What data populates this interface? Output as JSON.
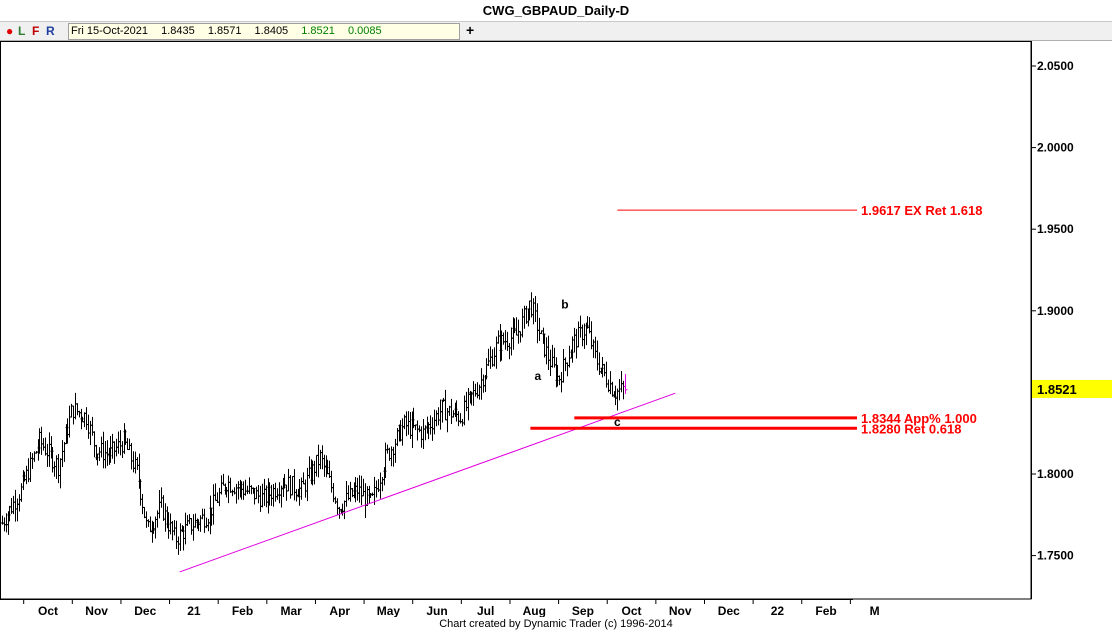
{
  "window": {
    "title": "CWG_GBPAUD_Daily-D"
  },
  "toolbar": {
    "buttons": [
      {
        "label": "L",
        "color": "#2e7d32"
      },
      {
        "label": "F",
        "color": "#c00000"
      },
      {
        "label": "R",
        "color": "#1f3fa0"
      }
    ],
    "dot_color": "#e00000",
    "quote": {
      "date": "Fri 15-Oct-2021",
      "open": "1.8435",
      "high": "1.8571",
      "low": "1.8405",
      "close": "1.8521",
      "change": "0.0085"
    },
    "add_label": "+"
  },
  "footer": {
    "text": "Chart created by Dynamic Trader  (c)  1996-2014"
  },
  "chart_data": {
    "type": "ohlc",
    "title": "CWG_GBPAUD_Daily-D",
    "ylim": [
      1.725,
      2.06
    ],
    "y_ticks": [
      "2.0500",
      "2.0000",
      "1.9500",
      "1.9000",
      "1.8000",
      "1.7500"
    ],
    "x_tick_labels": [
      "Oct",
      "Nov",
      "Dec",
      "21",
      "Feb",
      "Mar",
      "Apr",
      "May",
      "Jun",
      "Jul",
      "Aug",
      "Sep",
      "Oct",
      "Nov",
      "Dec",
      "22",
      "Feb",
      "M"
    ],
    "x_range_weeks": 91,
    "last_price": {
      "value": 1.8521,
      "label": "1.8521",
      "color": "#ffff00"
    },
    "price_path": [
      {
        "w": 0,
        "p": 1.77
      },
      {
        "w": 2,
        "p": 1.79
      },
      {
        "w": 4,
        "p": 1.82
      },
      {
        "w": 6,
        "p": 1.805
      },
      {
        "w": 7.5,
        "p": 1.84
      },
      {
        "w": 9,
        "p": 1.835
      },
      {
        "w": 10,
        "p": 1.815
      },
      {
        "w": 11.5,
        "p": 1.812
      },
      {
        "w": 13,
        "p": 1.82
      },
      {
        "w": 14.5,
        "p": 1.8
      },
      {
        "w": 15.5,
        "p": 1.765
      },
      {
        "w": 17,
        "p": 1.78
      },
      {
        "w": 18.5,
        "p": 1.76
      },
      {
        "w": 20,
        "p": 1.768
      },
      {
        "w": 22,
        "p": 1.775
      },
      {
        "w": 24,
        "p": 1.795
      },
      {
        "w": 26,
        "p": 1.79
      },
      {
        "w": 28,
        "p": 1.785
      },
      {
        "w": 30,
        "p": 1.795
      },
      {
        "w": 32,
        "p": 1.79
      },
      {
        "w": 34,
        "p": 1.81
      },
      {
        "w": 35,
        "p": 1.795
      },
      {
        "w": 36,
        "p": 1.78
      },
      {
        "w": 38,
        "p": 1.79
      },
      {
        "w": 39.5,
        "p": 1.782
      },
      {
        "w": 41,
        "p": 1.81
      },
      {
        "w": 43,
        "p": 1.83
      },
      {
        "w": 45,
        "p": 1.825
      },
      {
        "w": 47,
        "p": 1.84
      },
      {
        "w": 49,
        "p": 1.835
      },
      {
        "w": 51,
        "p": 1.855
      },
      {
        "w": 53,
        "p": 1.88
      },
      {
        "w": 55,
        "p": 1.885
      },
      {
        "w": 56.5,
        "p": 1.905
      },
      {
        "w": 57.5,
        "p": 1.885
      },
      {
        "w": 58.5,
        "p": 1.87
      },
      {
        "w": 59.5,
        "p": 1.858
      },
      {
        "w": 61,
        "p": 1.88
      },
      {
        "w": 62.5,
        "p": 1.89
      },
      {
        "w": 63.5,
        "p": 1.87
      },
      {
        "w": 64.5,
        "p": 1.86
      },
      {
        "w": 65.5,
        "p": 1.85
      },
      {
        "w": 66.5,
        "p": 1.852
      }
    ],
    "trendline": {
      "x1_w": 19,
      "y1": 1.74,
      "x2_w": 72,
      "y2": 1.8495,
      "color": "#e000e0"
    },
    "levels": [
      {
        "value": 1.9617,
        "label": "1.9617 EX Ret 1.618",
        "start_w": 65.8,
        "thickness": 1,
        "color": "#ff0000"
      },
      {
        "value": 1.8344,
        "label": "1.8344 App% 1.000",
        "start_w": 61.2,
        "thickness": 3,
        "color": "#ff0000"
      },
      {
        "value": 1.828,
        "label": "1.8280 Ret 0.618",
        "start_w": 56.5,
        "thickness": 3,
        "color": "#ff0000"
      }
    ],
    "wave_labels": [
      {
        "text": "a",
        "w": 57.3,
        "y": 1.8575
      },
      {
        "text": "b",
        "w": 60.2,
        "y": 1.9015
      },
      {
        "text": "c",
        "w": 65.8,
        "y": 1.8295
      }
    ]
  }
}
